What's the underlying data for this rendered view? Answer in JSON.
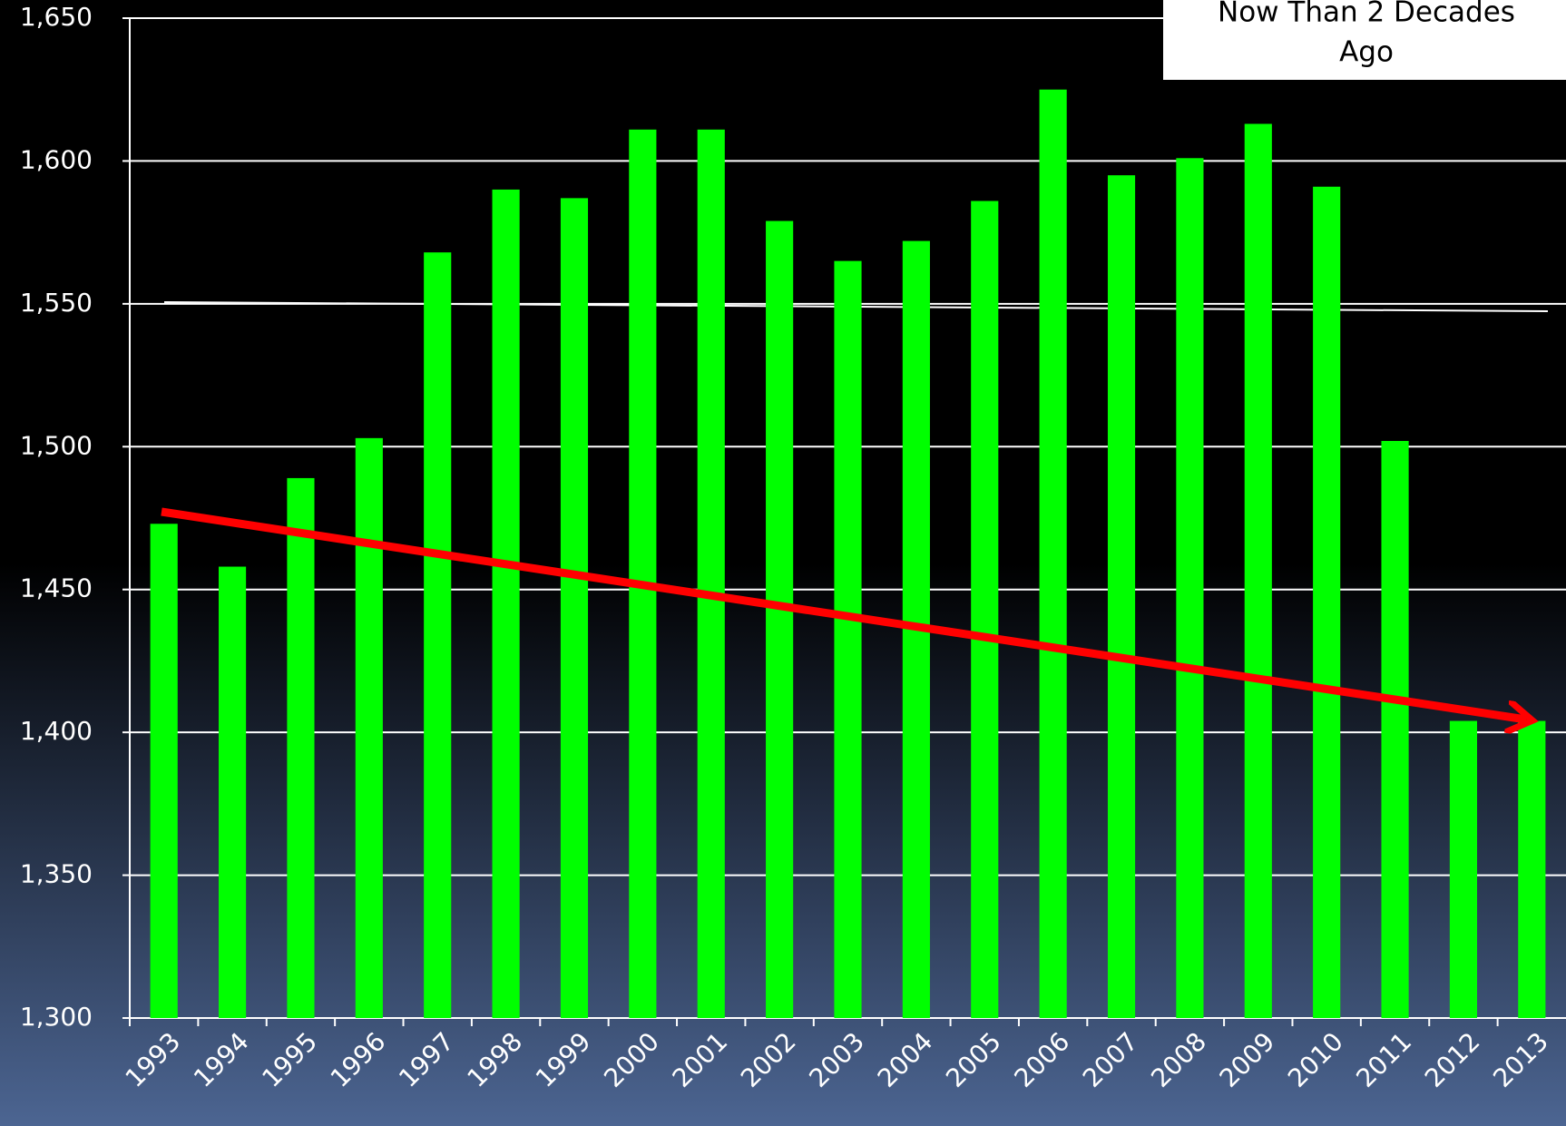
{
  "chart_data": {
    "type": "bar",
    "annotation": [
      "Now Than 2 Decades",
      "Ago"
    ],
    "categories": [
      "1993",
      "1994",
      "1995",
      "1996",
      "1997",
      "1998",
      "1999",
      "2000",
      "2001",
      "2002",
      "2003",
      "2004",
      "2005",
      "2006",
      "2007",
      "2008",
      "2009",
      "2010",
      "2011",
      "2012",
      "2013"
    ],
    "values": [
      1473,
      1458,
      1489,
      1503,
      1568,
      1590,
      1587,
      1611,
      1611,
      1579,
      1565,
      1572,
      1586,
      1625,
      1595,
      1601,
      1613,
      1591,
      1502,
      1404,
      1404
    ],
    "color": "#00ff00",
    "ylim": [
      1300,
      1650
    ],
    "yticks": [
      {
        "value": 1300,
        "label": "1,300"
      },
      {
        "value": 1350,
        "label": "1,350"
      },
      {
        "value": 1400,
        "label": "1,400"
      },
      {
        "value": 1450,
        "label": "1,450"
      },
      {
        "value": 1500,
        "label": "1,500"
      },
      {
        "value": 1550,
        "label": "1,550"
      },
      {
        "value": 1600,
        "label": "1,600"
      },
      {
        "value": 1650,
        "label": "1,650"
      }
    ],
    "grid": true
  }
}
